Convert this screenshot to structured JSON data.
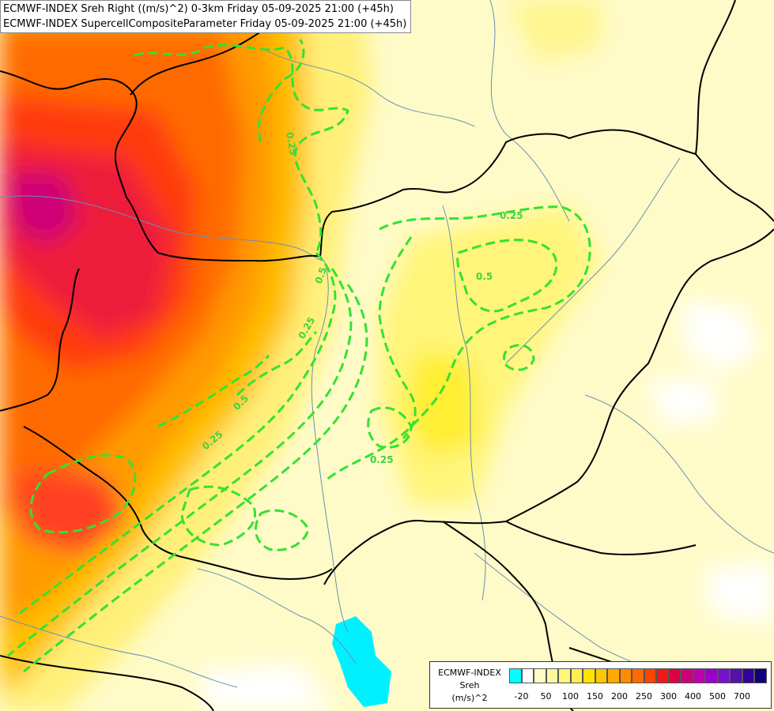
{
  "title": {
    "line1": "ECMWF-INDEX Sreh Right ((m/s)^2) 0-3km Friday 05-09-2025 21:00 (+45h)",
    "line2": "ECMWF-INDEX SupercellCompositeParameter Friday 05-09-2025 21:00 (+45h)"
  },
  "contour_labels": [
    "0.25",
    "0.25",
    "0.5",
    "0.25",
    "0.5",
    "0.25",
    "0.5",
    "0.25"
  ],
  "legend": {
    "line1": "ECMWF-INDEX",
    "line2": "Sreh",
    "line3": "(m/s)^2",
    "colors": [
      "#00ffff",
      "#ffffff",
      "#fffbc8",
      "#fff7a0",
      "#fff57a",
      "#fff050",
      "#ffe400",
      "#ffc800",
      "#ffaa00",
      "#ff8c00",
      "#ff6a00",
      "#ff4400",
      "#ee1a1a",
      "#dd0044",
      "#cc0077",
      "#bb00aa",
      "#9900cc",
      "#7711cc",
      "#5511aa",
      "#330099",
      "#110077"
    ],
    "ticks": [
      "-20",
      "50",
      "100",
      "150",
      "200",
      "250",
      "300",
      "400",
      "500",
      "700"
    ]
  }
}
